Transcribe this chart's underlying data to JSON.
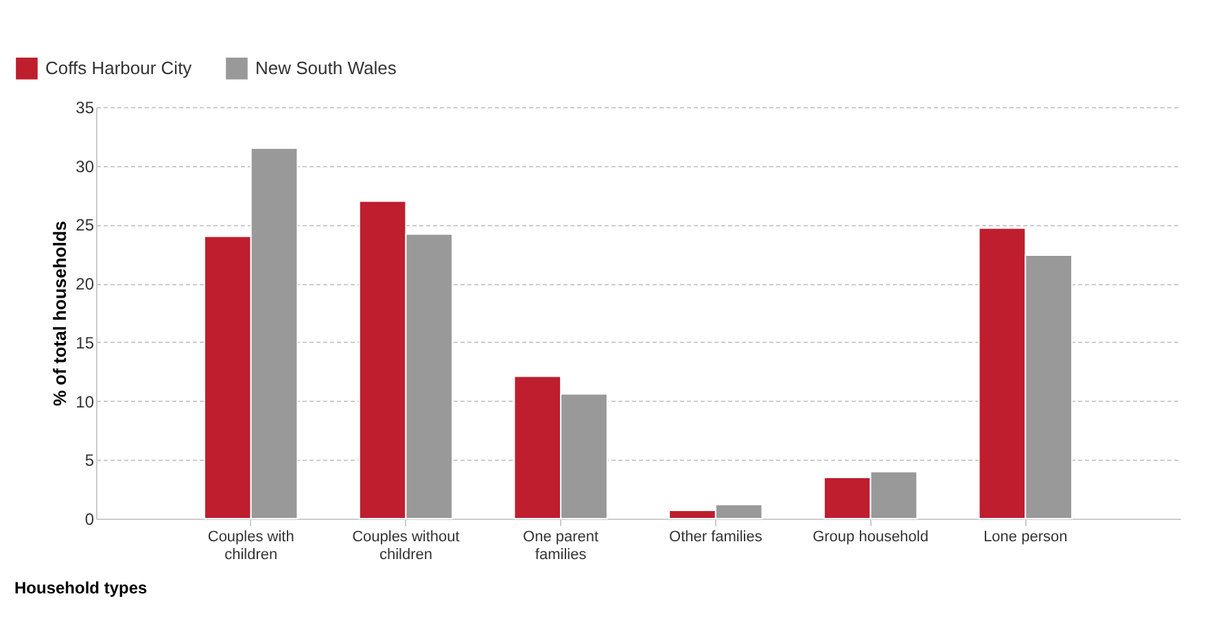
{
  "chart_data": {
    "type": "bar",
    "xlabel": "Household types",
    "ylabel": "% of total households",
    "categories": [
      "Couples with children",
      "Couples without children",
      "One parent families",
      "Other families",
      "Group household",
      "Lone person"
    ],
    "series": [
      {
        "name": "Coffs Harbour City",
        "color": "#be1e2d",
        "values": [
          24.0,
          27.0,
          12.1,
          0.7,
          3.5,
          24.7
        ]
      },
      {
        "name": "New South Wales",
        "color": "#999999",
        "values": [
          31.5,
          24.2,
          10.6,
          1.2,
          4.0,
          22.4
        ]
      }
    ],
    "ylim": [
      0,
      35
    ],
    "yticks": [
      0,
      5,
      10,
      15,
      20,
      25,
      30,
      35
    ],
    "grid": "y",
    "legend": "top left"
  }
}
